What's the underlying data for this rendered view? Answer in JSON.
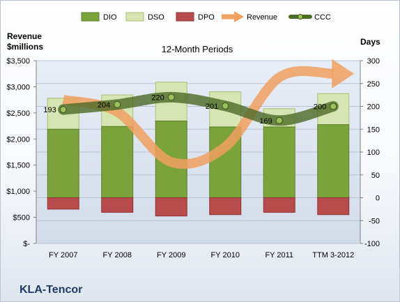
{
  "chart_data": {
    "type": "bar",
    "title": "12-Month Periods",
    "company": "KLA-Tencor",
    "left_axis_label_line1": "Revenue",
    "left_axis_label_line2": "$millions",
    "right_axis_label": "Days",
    "categories": [
      "FY 2007",
      "FY 2008",
      "FY 2009",
      "FY 2010",
      "FY 2011",
      "TTM 3-2012"
    ],
    "y_days_range": [
      -100,
      300
    ],
    "y_days_ticks": [
      -100,
      -50,
      0,
      50,
      100,
      150,
      200,
      250,
      300
    ],
    "y_revenue_range": [
      0,
      3500
    ],
    "y_revenue_ticks": [
      "$-",
      "$500",
      "$1,000",
      "$1,500",
      "$2,000",
      "$2,500",
      "$3,000",
      "$3,500"
    ],
    "legend_position": "top",
    "series": [
      {
        "name": "DIO",
        "axis": "days",
        "kind": "stacked-bar",
        "color": "#7aa33c",
        "values": [
          150,
          156,
          168,
          155,
          155,
          160
        ]
      },
      {
        "name": "DSO",
        "axis": "days",
        "kind": "stacked-bar",
        "color": "#d6e5b2",
        "values": [
          68,
          69,
          85,
          77,
          40,
          68
        ]
      },
      {
        "name": "DPO",
        "axis": "days",
        "kind": "negative-bar",
        "color": "#b84b4b",
        "values": [
          -25,
          -32,
          -40,
          -37,
          -32,
          -37
        ]
      },
      {
        "name": "Revenue",
        "axis": "revenue",
        "kind": "smooth-arrow-line",
        "color": "#f0a060",
        "values": [
          2750,
          2520,
          1560,
          1850,
          3180,
          3250
        ]
      },
      {
        "name": "CCC",
        "axis": "days",
        "kind": "smooth-line",
        "color": "#4f6b2a",
        "values": [
          193,
          204,
          220,
          201,
          169,
          200
        ]
      }
    ]
  }
}
